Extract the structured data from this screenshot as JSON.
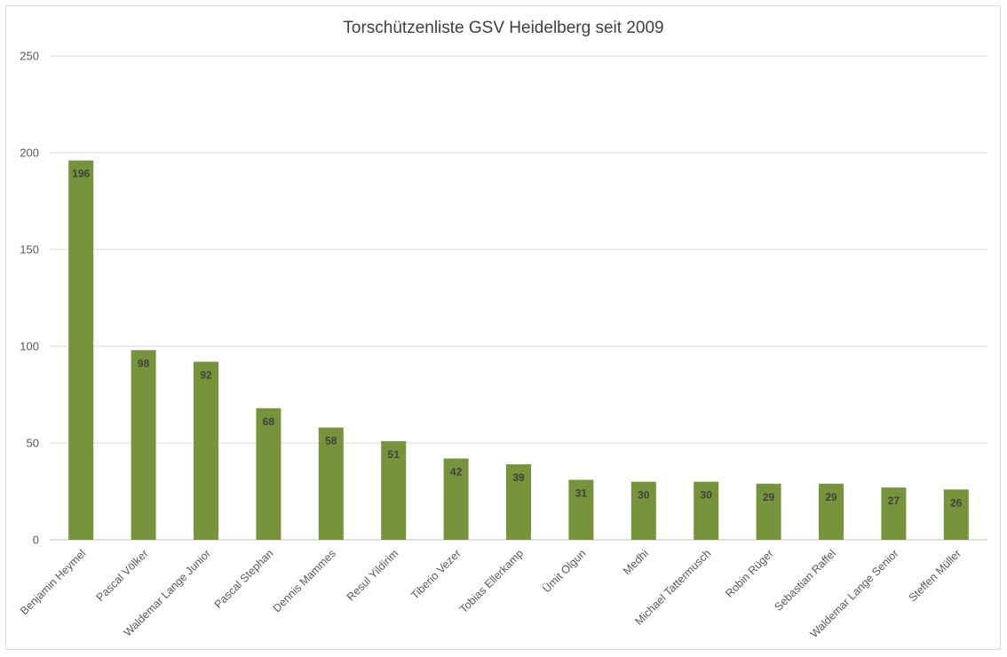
{
  "chart_data": {
    "type": "bar",
    "title": "Torschützenliste GSV Heidelberg seit 2009",
    "xlabel": "",
    "ylabel": "",
    "ylim": [
      0,
      250
    ],
    "yticks": [
      0,
      50,
      100,
      150,
      200,
      250
    ],
    "grid": true,
    "legend": "none",
    "bar_color": "#77933c",
    "categories": [
      "Benjamin Heymel",
      "Pascal Völker",
      "Waldemar Lange Junior",
      "Pascal Stephan",
      "Dennis Mammes",
      "Resul Yildirim",
      "Tiberio Vezer",
      "Tobias Ellerkamp",
      "Ümit Olgun",
      "Medhi",
      "Michael Tattermusch",
      "Robin Rüger",
      "Sebastian Raffel",
      "Waldemar Lange Senior",
      "Steffen Müller"
    ],
    "values": [
      196,
      98,
      92,
      68,
      58,
      51,
      42,
      39,
      31,
      30,
      30,
      29,
      29,
      27,
      26
    ]
  }
}
